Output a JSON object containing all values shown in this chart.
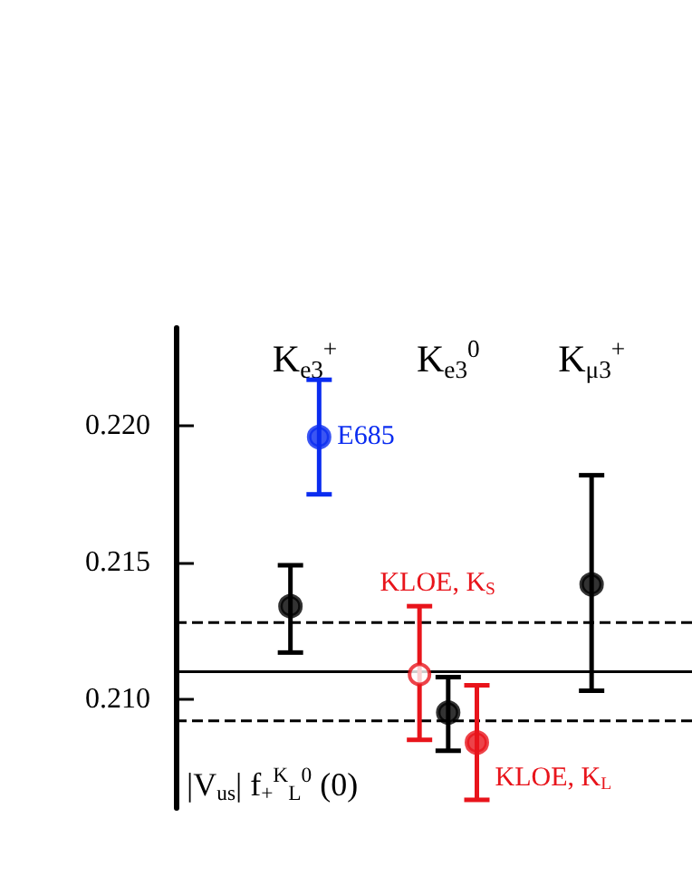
{
  "chart_data": {
    "type": "scatter",
    "categories": [
      "K$_{e3}$$^{+}$",
      "K$_{e3}$$^{0}$",
      "K$_{μ3}$$^{+}$"
    ],
    "annotations": [
      "|V$_{us}$| f$_{+}$$^{K}$$_{L}$$^{0}$ (0)"
    ],
    "ylim": [
      0.206,
      0.2236
    ],
    "yticks": [
      {
        "value": 0.21,
        "label": "0.210"
      },
      {
        "value": 0.215,
        "label": "0.215"
      },
      {
        "value": 0.22,
        "label": "0.220"
      }
    ],
    "marker": "circle",
    "series": [
      {
        "name": "KLOE, K$_{S}$",
        "color": "#e8141b",
        "marker": "circle_open",
        "values": [
          null,
          0.2109,
          null
        ],
        "errors": [
          null,
          [
            0.2085,
            0.2134
          ],
          null
        ]
      },
      {
        "color": "#000000",
        "values": [
          0.2134,
          0.2095,
          0.2142
        ],
        "errors": [
          [
            0.2117,
            0.2149
          ],
          [
            0.2081,
            0.2108
          ],
          [
            0.2103,
            0.2182
          ]
        ]
      },
      {
        "name": "E685",
        "color": "#0a2cf0",
        "values": [
          0.2196,
          null,
          null
        ],
        "errors": [
          [
            0.2175,
            0.2217
          ],
          null,
          null
        ]
      },
      {
        "name": "KLOE, K$_{L}$",
        "color": "#e8141b",
        "values": [
          null,
          0.2084,
          null
        ],
        "errors": [
          null,
          [
            0.2063,
            0.2105
          ],
          null
        ]
      }
    ],
    "ref_lines": [
      {
        "axis": "y",
        "value": 0.211,
        "color": "#000000",
        "line_style": "solid"
      },
      {
        "axis": "y",
        "value": 0.2128,
        "color": "#000000",
        "line_style": "dashed"
      },
      {
        "axis": "y",
        "value": 0.2092,
        "color": "#000000",
        "line_style": "dashed"
      }
    ]
  }
}
